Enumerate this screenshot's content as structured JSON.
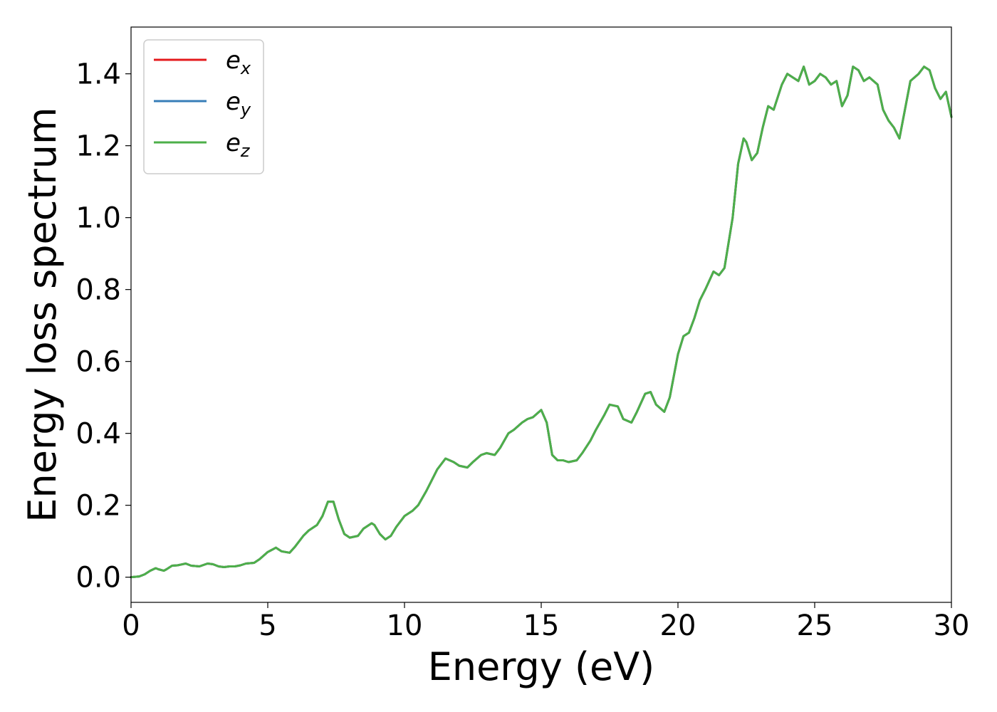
{
  "chart_data": {
    "type": "line",
    "xlabel": "Energy (eV)",
    "ylabel": "Energy loss spectrum",
    "xlim": [
      0,
      30
    ],
    "ylim": [
      -0.07,
      1.53
    ],
    "xticks": [
      "0",
      "5",
      "10",
      "15",
      "20",
      "25",
      "30"
    ],
    "yticks": [
      "0.0",
      "0.2",
      "0.4",
      "0.6",
      "0.8",
      "1.0",
      "1.2",
      "1.4"
    ],
    "grid": false,
    "legend_position": "top-left",
    "series": [
      {
        "name": "e",
        "subscript": "x",
        "color": "#e41a1c",
        "x": [
          0,
          0.3,
          0.5,
          0.7,
          0.9,
          1.0,
          1.2,
          1.3,
          1.5,
          1.7,
          2.0,
          2.2,
          2.5,
          2.8,
          3.0,
          3.2,
          3.4,
          3.6,
          3.8,
          4.0,
          4.2,
          4.5,
          4.7,
          5.0,
          5.3,
          5.5,
          5.8,
          6.0,
          6.3,
          6.5,
          6.8,
          7.0,
          7.2,
          7.4,
          7.6,
          7.8,
          8.0,
          8.3,
          8.5,
          8.8,
          8.9,
          9.1,
          9.3,
          9.5,
          9.7,
          10.0,
          10.3,
          10.5,
          10.8,
          11.0,
          11.2,
          11.5,
          11.8,
          12.0,
          12.3,
          12.5,
          12.8,
          13.0,
          13.3,
          13.5,
          13.8,
          14.0,
          14.3,
          14.5,
          14.7,
          15.0,
          15.2,
          15.4,
          15.6,
          15.8,
          16.0,
          16.3,
          16.5,
          16.8,
          17.0,
          17.3,
          17.5,
          17.8,
          18.0,
          18.3,
          18.5,
          18.8,
          19.0,
          19.2,
          19.5,
          19.7,
          20.0,
          20.2,
          20.4,
          20.6,
          20.8,
          21.0,
          21.3,
          21.5,
          21.7,
          22.0,
          22.2,
          22.4,
          22.5,
          22.7,
          22.9,
          23.1,
          23.3,
          23.5,
          23.8,
          24.0,
          24.2,
          24.4,
          24.6,
          24.8,
          25.0,
          25.2,
          25.4,
          25.6,
          25.8,
          26.0,
          26.2,
          26.4,
          26.6,
          26.8,
          27.0,
          27.3,
          27.5,
          27.7,
          27.9,
          28.1,
          28.3,
          28.5,
          28.8,
          29.0,
          29.2,
          29.4,
          29.6,
          29.8,
          30.0
        ],
        "values": [
          0.0,
          0.002,
          0.008,
          0.018,
          0.025,
          0.022,
          0.018,
          0.022,
          0.032,
          0.033,
          0.038,
          0.032,
          0.03,
          0.038,
          0.036,
          0.03,
          0.028,
          0.03,
          0.03,
          0.033,
          0.038,
          0.04,
          0.05,
          0.07,
          0.082,
          0.072,
          0.068,
          0.085,
          0.115,
          0.13,
          0.145,
          0.17,
          0.21,
          0.21,
          0.16,
          0.12,
          0.11,
          0.115,
          0.135,
          0.15,
          0.145,
          0.12,
          0.105,
          0.115,
          0.14,
          0.17,
          0.185,
          0.2,
          0.24,
          0.27,
          0.3,
          0.33,
          0.32,
          0.31,
          0.305,
          0.32,
          0.34,
          0.345,
          0.34,
          0.36,
          0.4,
          0.41,
          0.43,
          0.44,
          0.445,
          0.465,
          0.43,
          0.34,
          0.325,
          0.325,
          0.32,
          0.325,
          0.345,
          0.38,
          0.41,
          0.45,
          0.48,
          0.475,
          0.44,
          0.43,
          0.46,
          0.51,
          0.515,
          0.48,
          0.46,
          0.5,
          0.62,
          0.67,
          0.68,
          0.72,
          0.77,
          0.8,
          0.85,
          0.84,
          0.86,
          1.0,
          1.15,
          1.22,
          1.21,
          1.16,
          1.18,
          1.25,
          1.31,
          1.3,
          1.37,
          1.4,
          1.39,
          1.38,
          1.42,
          1.37,
          1.38,
          1.4,
          1.39,
          1.37,
          1.38,
          1.31,
          1.34,
          1.42,
          1.41,
          1.38,
          1.39,
          1.37,
          1.3,
          1.27,
          1.25,
          1.22,
          1.3,
          1.38,
          1.4,
          1.42,
          1.41,
          1.36,
          1.33,
          1.35,
          1.28
        ]
      },
      {
        "name": "e",
        "subscript": "y",
        "color": "#377eb8",
        "x": [
          0,
          0.3,
          0.5,
          0.7,
          0.9,
          1.0,
          1.2,
          1.3,
          1.5,
          1.7,
          2.0,
          2.2,
          2.5,
          2.8,
          3.0,
          3.2,
          3.4,
          3.6,
          3.8,
          4.0,
          4.2,
          4.5,
          4.7,
          5.0,
          5.3,
          5.5,
          5.8,
          6.0,
          6.3,
          6.5,
          6.8,
          7.0,
          7.2,
          7.4,
          7.6,
          7.8,
          8.0,
          8.3,
          8.5,
          8.8,
          8.9,
          9.1,
          9.3,
          9.5,
          9.7,
          10.0,
          10.3,
          10.5,
          10.8,
          11.0,
          11.2,
          11.5,
          11.8,
          12.0,
          12.3,
          12.5,
          12.8,
          13.0,
          13.3,
          13.5,
          13.8,
          14.0,
          14.3,
          14.5,
          14.7,
          15.0,
          15.2,
          15.4,
          15.6,
          15.8,
          16.0,
          16.3,
          16.5,
          16.8,
          17.0,
          17.3,
          17.5,
          17.8,
          18.0,
          18.3,
          18.5,
          18.8,
          19.0,
          19.2,
          19.5,
          19.7,
          20.0,
          20.2,
          20.4,
          20.6,
          20.8,
          21.0,
          21.3,
          21.5,
          21.7,
          22.0,
          22.2,
          22.4,
          22.5,
          22.7,
          22.9,
          23.1,
          23.3,
          23.5,
          23.8,
          24.0,
          24.2,
          24.4,
          24.6,
          24.8,
          25.0,
          25.2,
          25.4,
          25.6,
          25.8,
          26.0,
          26.2,
          26.4,
          26.6,
          26.8,
          27.0,
          27.3,
          27.5,
          27.7,
          27.9,
          28.1,
          28.3,
          28.5,
          28.8,
          29.0,
          29.2,
          29.4,
          29.6,
          29.8,
          30.0
        ],
        "values": [
          0.0,
          0.002,
          0.008,
          0.018,
          0.025,
          0.022,
          0.018,
          0.022,
          0.032,
          0.033,
          0.038,
          0.032,
          0.03,
          0.038,
          0.036,
          0.03,
          0.028,
          0.03,
          0.03,
          0.033,
          0.038,
          0.04,
          0.05,
          0.07,
          0.082,
          0.072,
          0.068,
          0.085,
          0.115,
          0.13,
          0.145,
          0.17,
          0.21,
          0.21,
          0.16,
          0.12,
          0.11,
          0.115,
          0.135,
          0.15,
          0.145,
          0.12,
          0.105,
          0.115,
          0.14,
          0.17,
          0.185,
          0.2,
          0.24,
          0.27,
          0.3,
          0.33,
          0.32,
          0.31,
          0.305,
          0.32,
          0.34,
          0.345,
          0.34,
          0.36,
          0.4,
          0.41,
          0.43,
          0.44,
          0.445,
          0.465,
          0.43,
          0.34,
          0.325,
          0.325,
          0.32,
          0.325,
          0.345,
          0.38,
          0.41,
          0.45,
          0.48,
          0.475,
          0.44,
          0.43,
          0.46,
          0.51,
          0.515,
          0.48,
          0.46,
          0.5,
          0.62,
          0.67,
          0.68,
          0.72,
          0.77,
          0.8,
          0.85,
          0.84,
          0.86,
          1.0,
          1.15,
          1.22,
          1.21,
          1.16,
          1.18,
          1.25,
          1.31,
          1.3,
          1.37,
          1.4,
          1.39,
          1.38,
          1.42,
          1.37,
          1.38,
          1.4,
          1.39,
          1.37,
          1.38,
          1.31,
          1.34,
          1.42,
          1.41,
          1.38,
          1.39,
          1.37,
          1.3,
          1.27,
          1.25,
          1.22,
          1.3,
          1.38,
          1.4,
          1.42,
          1.41,
          1.36,
          1.33,
          1.35,
          1.28
        ]
      },
      {
        "name": "e",
        "subscript": "z",
        "color": "#4daf4a",
        "x": [
          0,
          0.3,
          0.5,
          0.7,
          0.9,
          1.0,
          1.2,
          1.3,
          1.5,
          1.7,
          2.0,
          2.2,
          2.5,
          2.8,
          3.0,
          3.2,
          3.4,
          3.6,
          3.8,
          4.0,
          4.2,
          4.5,
          4.7,
          5.0,
          5.3,
          5.5,
          5.8,
          6.0,
          6.3,
          6.5,
          6.8,
          7.0,
          7.2,
          7.4,
          7.6,
          7.8,
          8.0,
          8.3,
          8.5,
          8.8,
          8.9,
          9.1,
          9.3,
          9.5,
          9.7,
          10.0,
          10.3,
          10.5,
          10.8,
          11.0,
          11.2,
          11.5,
          11.8,
          12.0,
          12.3,
          12.5,
          12.8,
          13.0,
          13.3,
          13.5,
          13.8,
          14.0,
          14.3,
          14.5,
          14.7,
          15.0,
          15.2,
          15.4,
          15.6,
          15.8,
          16.0,
          16.3,
          16.5,
          16.8,
          17.0,
          17.3,
          17.5,
          17.8,
          18.0,
          18.3,
          18.5,
          18.8,
          19.0,
          19.2,
          19.5,
          19.7,
          20.0,
          20.2,
          20.4,
          20.6,
          20.8,
          21.0,
          21.3,
          21.5,
          21.7,
          22.0,
          22.2,
          22.4,
          22.5,
          22.7,
          22.9,
          23.1,
          23.3,
          23.5,
          23.8,
          24.0,
          24.2,
          24.4,
          24.6,
          24.8,
          25.0,
          25.2,
          25.4,
          25.6,
          25.8,
          26.0,
          26.2,
          26.4,
          26.6,
          26.8,
          27.0,
          27.3,
          27.5,
          27.7,
          27.9,
          28.1,
          28.3,
          28.5,
          28.8,
          29.0,
          29.2,
          29.4,
          29.6,
          29.8,
          30.0
        ],
        "values": [
          0.0,
          0.002,
          0.008,
          0.018,
          0.025,
          0.022,
          0.018,
          0.022,
          0.032,
          0.033,
          0.038,
          0.032,
          0.03,
          0.038,
          0.036,
          0.03,
          0.028,
          0.03,
          0.03,
          0.033,
          0.038,
          0.04,
          0.05,
          0.07,
          0.082,
          0.072,
          0.068,
          0.085,
          0.115,
          0.13,
          0.145,
          0.17,
          0.21,
          0.21,
          0.16,
          0.12,
          0.11,
          0.115,
          0.135,
          0.15,
          0.145,
          0.12,
          0.105,
          0.115,
          0.14,
          0.17,
          0.185,
          0.2,
          0.24,
          0.27,
          0.3,
          0.33,
          0.32,
          0.31,
          0.305,
          0.32,
          0.34,
          0.345,
          0.34,
          0.36,
          0.4,
          0.41,
          0.43,
          0.44,
          0.445,
          0.465,
          0.43,
          0.34,
          0.325,
          0.325,
          0.32,
          0.325,
          0.345,
          0.38,
          0.41,
          0.45,
          0.48,
          0.475,
          0.44,
          0.43,
          0.46,
          0.51,
          0.515,
          0.48,
          0.46,
          0.5,
          0.62,
          0.67,
          0.68,
          0.72,
          0.77,
          0.8,
          0.85,
          0.84,
          0.86,
          1.0,
          1.15,
          1.22,
          1.21,
          1.16,
          1.18,
          1.25,
          1.31,
          1.3,
          1.37,
          1.4,
          1.39,
          1.38,
          1.42,
          1.37,
          1.38,
          1.4,
          1.39,
          1.37,
          1.38,
          1.31,
          1.34,
          1.42,
          1.41,
          1.38,
          1.39,
          1.37,
          1.3,
          1.27,
          1.25,
          1.22,
          1.3,
          1.38,
          1.4,
          1.42,
          1.41,
          1.36,
          1.33,
          1.35,
          1.28
        ]
      }
    ]
  }
}
